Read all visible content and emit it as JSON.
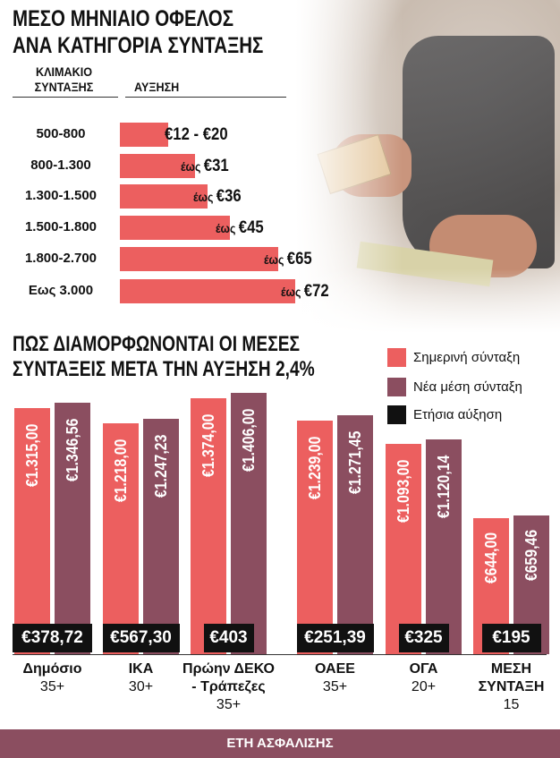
{
  "colors": {
    "current": "#ec5f5f",
    "new": "#8b4e60",
    "increase": "#111111",
    "footer": "#8b4e60"
  },
  "photo": {
    "icon": "pensioner-holding-banknotes-photo"
  },
  "chart_data": [
    {
      "type": "bar",
      "orientation": "horizontal",
      "title_lines": [
        "ΜΕΣΟ ΜΗΝΙΑΙΟ ΟΦΕΛΟΣ",
        "ΑΝΑ ΚΑΤΗΓΟΡΙΑ ΣΥΝΤΑΞΗΣ"
      ],
      "column_headers": {
        "category_lines": [
          "ΚΛΙΜΑΚΙΟ",
          "ΣΥΝΤΑΞΗΣ"
        ],
        "value": "ΑΥΞΗΣΗ"
      },
      "categories": [
        "500-800",
        "800-1.300",
        "1.300-1.500",
        "1.500-1.800",
        "1.800-2.700",
        "Εως 3.000"
      ],
      "values": [
        20,
        31,
        36,
        45,
        65,
        72
      ],
      "labels": [
        {
          "prefix": "",
          "text": "€12 - €20"
        },
        {
          "prefix": "έως ",
          "text": "€31"
        },
        {
          "prefix": "έως ",
          "text": "€36"
        },
        {
          "prefix": "έως ",
          "text": "€45"
        },
        {
          "prefix": "έως ",
          "text": "€65"
        },
        {
          "prefix": "έως ",
          "text": "€72"
        }
      ],
      "xlim": [
        0,
        72
      ],
      "grid": false
    },
    {
      "type": "bar",
      "orientation": "vertical",
      "title_lines": [
        "ΠΩΣ ΔΙΑΜΟΡΦΩΝΟΝΤΑΙ ΟΙ ΜΕΣΕΣ",
        "ΣΥΝΤΑΞΕΙΣ ΜΕΤΑ ΤΗΝ ΑΥΞΗΣΗ 2,4%"
      ],
      "legend": [
        "Σημερινή σύνταξη",
        "Νέα μέση σύνταξη",
        "Ετήσια αύξηση"
      ],
      "legend_position": "top-right",
      "categories": [
        {
          "name_lines": [
            "Δημόσιο"
          ],
          "years": "35+"
        },
        {
          "name_lines": [
            "ΙΚΑ"
          ],
          "years": "30+"
        },
        {
          "name_lines": [
            "Πρώην ΔΕΚΟ",
            "- Τράπεζες"
          ],
          "years": "35+"
        },
        {
          "name_lines": [
            "ΟΑΕΕ"
          ],
          "years": "35+"
        },
        {
          "name_lines": [
            "ΟΓΑ"
          ],
          "years": "20+"
        },
        {
          "name_lines": [
            "ΜΕΣΗ",
            "ΣΥΝΤΑΞΗ"
          ],
          "years": "15"
        }
      ],
      "series": [
        {
          "name": "Σημερινή σύνταξη",
          "values": [
            1315.0,
            1218.0,
            1374.0,
            1239.0,
            1093.0,
            644.0
          ],
          "labels": [
            "€1.315,00",
            "€1.218,00",
            "€1.374,00",
            "€1.239,00",
            "€1.093,00",
            "€644,00"
          ]
        },
        {
          "name": "Νέα μέση σύνταξη",
          "values": [
            1346.56,
            1247.23,
            1406.0,
            1271.45,
            1120.14,
            659.46
          ],
          "labels": [
            "€1.346,56",
            "€1.247,23",
            "€1.406,00",
            "€1.271,45",
            "€1.120,14",
            "€659,46"
          ]
        },
        {
          "name": "Ετήσια αύξηση",
          "values": [
            378.72,
            567.3,
            403,
            251.39,
            325,
            195
          ],
          "labels": [
            "€378,72",
            "€567,30",
            "€403",
            "€251,39",
            "€325",
            "€195"
          ]
        }
      ],
      "xlabel": "ΕΤΗ ΑΣΦΑΛΙΣΗΣ",
      "ylim": [
        0,
        1406
      ],
      "grid": false
    }
  ]
}
